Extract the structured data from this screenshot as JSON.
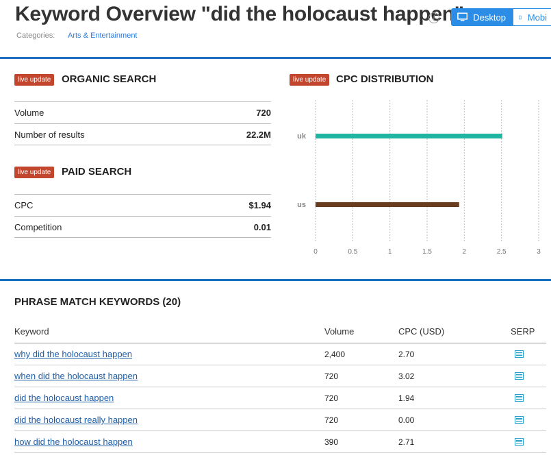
{
  "header": {
    "title": "Keyword Overview \"did the holocaust happen\"",
    "info_icon": "i",
    "categories_label": "Categories:",
    "category": "Arts & Entertainment",
    "device_desktop": "Desktop",
    "device_mobile": "Mobi"
  },
  "organic": {
    "badge": "live update",
    "title": "ORGANIC SEARCH",
    "rows": [
      {
        "label": "Volume",
        "value": "720"
      },
      {
        "label": "Number of results",
        "value": "22.2M"
      }
    ]
  },
  "paid": {
    "badge": "live update",
    "title": "PAID SEARCH",
    "rows": [
      {
        "label": "CPC",
        "value": "$1.94"
      },
      {
        "label": "Competition",
        "value": "0.01"
      }
    ]
  },
  "cpc": {
    "badge": "live update",
    "title": "CPC DISTRIBUTION"
  },
  "chart_data": {
    "type": "bar",
    "orientation": "horizontal",
    "categories": [
      "uk",
      "us"
    ],
    "values": [
      2.51,
      1.93
    ],
    "colors": [
      "#1fb5a0",
      "#6b3d1f"
    ],
    "xlim": [
      0,
      3
    ],
    "xticks": [
      "0",
      "0.5",
      "1",
      "1.5",
      "2",
      "2.5",
      "3"
    ],
    "grid": "vertical dashed"
  },
  "phrase": {
    "title": "PHRASE MATCH KEYWORDS (20)",
    "columns": {
      "keyword": "Keyword",
      "volume": "Volume",
      "cpc": "CPC (USD)",
      "serp": "SERP"
    },
    "rows": [
      {
        "keyword": "why did the holocaust happen",
        "volume": "2,400",
        "cpc": "2.70"
      },
      {
        "keyword": "when did the holocaust happen",
        "volume": "720",
        "cpc": "3.02"
      },
      {
        "keyword": "did the holocaust happen",
        "volume": "720",
        "cpc": "1.94"
      },
      {
        "keyword": "did the holocaust really happen",
        "volume": "720",
        "cpc": "0.00"
      },
      {
        "keyword": "how did the holocaust happen",
        "volume": "390",
        "cpc": "2.71"
      }
    ]
  }
}
